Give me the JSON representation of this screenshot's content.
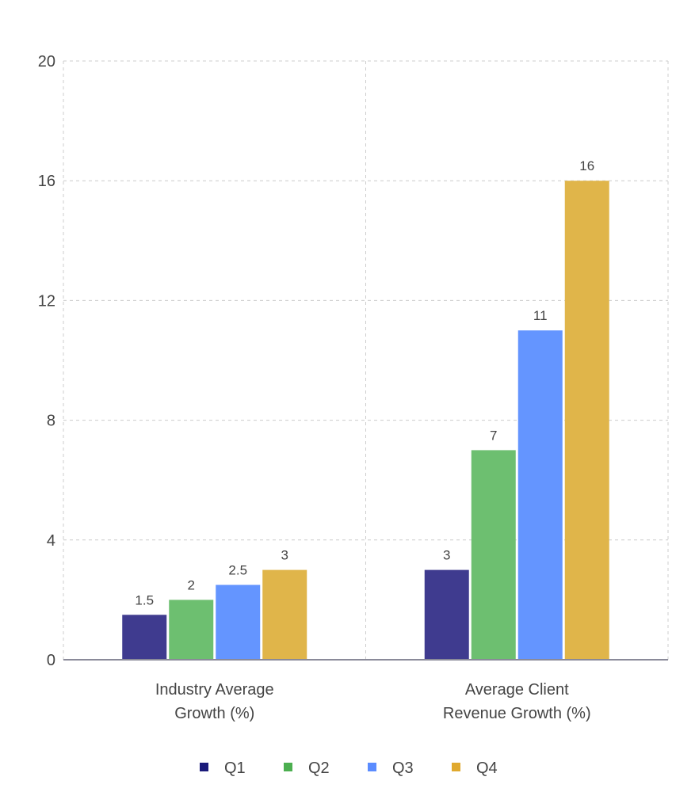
{
  "chart_data": {
    "type": "bar",
    "title": "",
    "xlabel": "",
    "ylabel": "",
    "categories": [
      [
        "Industry Average",
        "Growth (%)"
      ],
      [
        "Average Client",
        "Revenue Growth (%)"
      ]
    ],
    "series": [
      {
        "name": "Q1",
        "color": "#3f3b8f",
        "legend_color": "#1a1a7a",
        "values": [
          1.5,
          3
        ]
      },
      {
        "name": "Q2",
        "color": "#6dbf70",
        "legend_color": "#4caf50",
        "values": [
          2,
          7
        ]
      },
      {
        "name": "Q3",
        "color": "#6495ff",
        "legend_color": "#5b8cff",
        "values": [
          2.5,
          11
        ]
      },
      {
        "name": "Q4",
        "color": "#e0b54a",
        "legend_color": "#e0a92e",
        "values": [
          3,
          16
        ]
      }
    ],
    "ylim": [
      0,
      20
    ],
    "yticks": [
      0,
      4,
      8,
      12,
      16,
      20
    ],
    "grid": true,
    "legend_position": "bottom"
  }
}
